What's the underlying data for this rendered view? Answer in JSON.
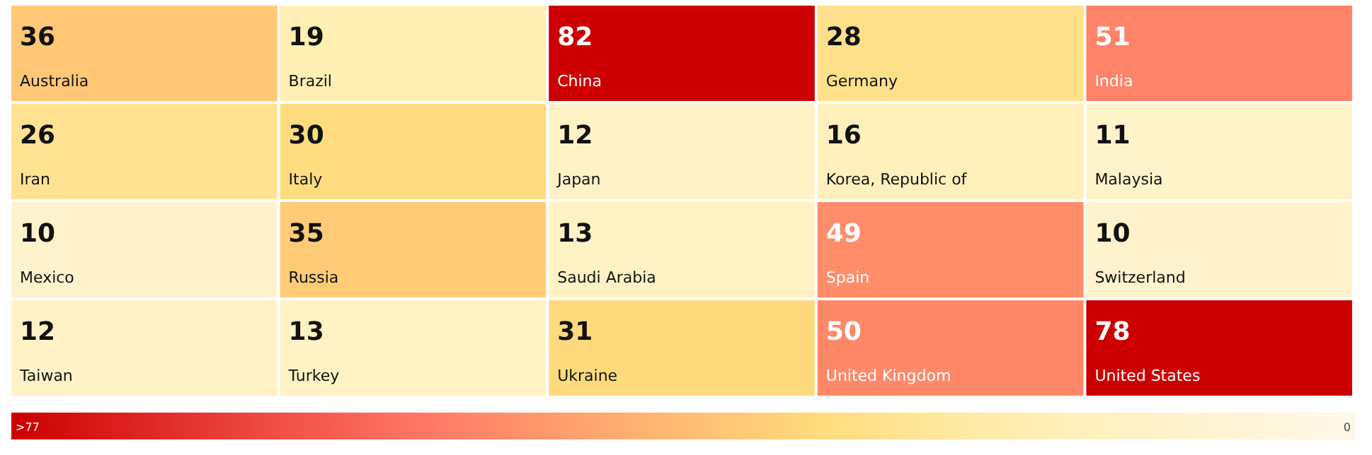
{
  "chart_data": {
    "type": "heatmap",
    "categories": [
      null,
      null,
      null,
      null,
      null
    ],
    "y_categories": [
      null,
      null,
      null,
      null
    ],
    "cells": [
      [
        36,
        19,
        82,
        28,
        51
      ],
      [
        26,
        30,
        12,
        16,
        11
      ],
      [
        10,
        35,
        13,
        49,
        10
      ],
      [
        12,
        13,
        31,
        50,
        78
      ]
    ],
    "cell_labels": [
      [
        "36 Australia",
        "19 Brazil",
        "82 China",
        "28 Germany",
        "51 India"
      ],
      [
        "26 Iran",
        "30 Italy",
        "12 Japan",
        "16 Korea, Republic of",
        "11 Malaysia"
      ],
      [
        "10 Mexico",
        "35 Russia",
        "13 Saudi Arabia",
        "49 Spain",
        "10 Switzerland"
      ],
      [
        "12 Taiwan",
        "13 Turkey",
        "31 Ukraine",
        "50 United Kingdom",
        "78 United States"
      ]
    ],
    "clim": [
      77,
      0
    ],
    "cticks": [
      {
        "value": 77,
        "label": ">77"
      },
      0
    ]
  }
}
